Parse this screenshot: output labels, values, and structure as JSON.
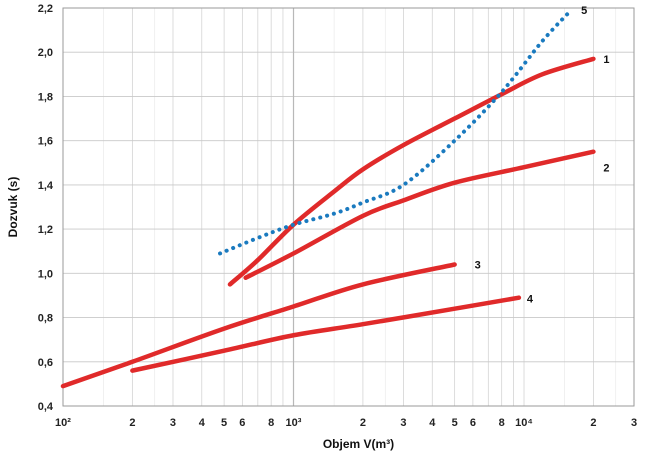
{
  "chart_data": {
    "type": "line",
    "xlabel": "Objem V(m³)",
    "ylabel": "Dozvuk (s)",
    "x_scale": "log",
    "xlim": [
      100,
      30000
    ],
    "ylim": [
      0.4,
      2.2
    ],
    "grid": true,
    "y_ticks": [
      {
        "value": 0.4,
        "label": "0,4"
      },
      {
        "value": 0.6,
        "label": "0,6"
      },
      {
        "value": 0.8,
        "label": "0,8"
      },
      {
        "value": 1.0,
        "label": "1,0"
      },
      {
        "value": 1.2,
        "label": "1,2"
      },
      {
        "value": 1.4,
        "label": "1,4"
      },
      {
        "value": 1.6,
        "label": "1,6"
      },
      {
        "value": 1.8,
        "label": "1,8"
      },
      {
        "value": 2.0,
        "label": "2,0"
      },
      {
        "value": 2.2,
        "label": "2,2"
      }
    ],
    "x_ticks": [
      {
        "value": 100,
        "label": "10²"
      },
      {
        "value": 200,
        "label": "2"
      },
      {
        "value": 300,
        "label": "3"
      },
      {
        "value": 400,
        "label": "4"
      },
      {
        "value": 500,
        "label": "5"
      },
      {
        "value": 600,
        "label": "6"
      },
      {
        "value": 800,
        "label": "8"
      },
      {
        "value": 1000,
        "label": "10³"
      },
      {
        "value": 2000,
        "label": "2"
      },
      {
        "value": 3000,
        "label": "3"
      },
      {
        "value": 4000,
        "label": "4"
      },
      {
        "value": 5000,
        "label": "5"
      },
      {
        "value": 6000,
        "label": "6"
      },
      {
        "value": 8000,
        "label": "8"
      },
      {
        "value": 10000,
        "label": "10⁴"
      },
      {
        "value": 20000,
        "label": "2"
      },
      {
        "value": 30000,
        "label": "3"
      }
    ],
    "series": [
      {
        "name": "1",
        "style": "solid",
        "color": "#e02a2a",
        "points": [
          [
            530,
            0.95
          ],
          [
            700,
            1.06
          ],
          [
            1000,
            1.22
          ],
          [
            1500,
            1.37
          ],
          [
            2000,
            1.47
          ],
          [
            3000,
            1.58
          ],
          [
            5000,
            1.7
          ],
          [
            8000,
            1.81
          ],
          [
            12000,
            1.9
          ],
          [
            20000,
            1.97
          ]
        ]
      },
      {
        "name": "2",
        "style": "solid",
        "color": "#e02a2a",
        "points": [
          [
            620,
            0.98
          ],
          [
            1000,
            1.09
          ],
          [
            2000,
            1.26
          ],
          [
            3000,
            1.33
          ],
          [
            5000,
            1.41
          ],
          [
            10000,
            1.48
          ],
          [
            20000,
            1.55
          ]
        ]
      },
      {
        "name": "3",
        "style": "solid",
        "color": "#e02a2a",
        "points": [
          [
            100,
            0.49
          ],
          [
            200,
            0.6
          ],
          [
            500,
            0.75
          ],
          [
            1000,
            0.85
          ],
          [
            2000,
            0.95
          ],
          [
            5000,
            1.04
          ]
        ]
      },
      {
        "name": "4",
        "style": "solid",
        "color": "#e02a2a",
        "points": [
          [
            200,
            0.56
          ],
          [
            500,
            0.65
          ],
          [
            1000,
            0.72
          ],
          [
            2000,
            0.77
          ],
          [
            5000,
            0.84
          ],
          [
            9500,
            0.89
          ]
        ]
      },
      {
        "name": "5",
        "style": "dotted",
        "color": "#1a7abf",
        "points": [
          [
            480,
            1.09
          ],
          [
            700,
            1.16
          ],
          [
            1000,
            1.22
          ],
          [
            1500,
            1.27
          ],
          [
            2000,
            1.32
          ],
          [
            3000,
            1.4
          ],
          [
            5000,
            1.6
          ],
          [
            8000,
            1.82
          ],
          [
            12000,
            2.05
          ],
          [
            16000,
            2.19
          ]
        ]
      }
    ]
  }
}
